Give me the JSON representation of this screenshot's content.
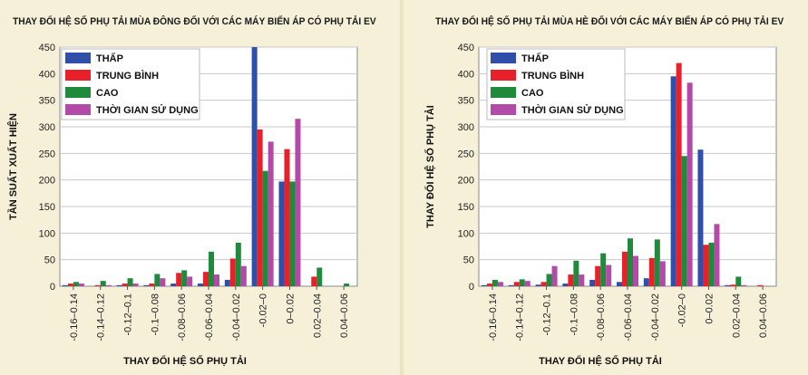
{
  "chart_data": [
    {
      "type": "bar",
      "title": "THAY ĐỔI HỆ SỐ PHỤ TẢI MÙA ĐÔNG ĐỐI VỚI CÁC MÁY BIẾN ÁP CÓ PHỤ TẢI EV",
      "xlabel": "THAY ĐỔI HỆ SỐ PHỤ TẢI",
      "ylabel": "TẦN SUẤT XUẤT HIỆN",
      "ylim": [
        0,
        450
      ],
      "yticks": [
        "0",
        "50",
        "100",
        "150",
        "200",
        "250",
        "300",
        "350",
        "400",
        "450"
      ],
      "categories": [
        "-0.16–0.14",
        "-0.14–0.12",
        "-0.12–0.1",
        "-0.1–0.08",
        "-0.08–0.06",
        "-0.06–0.04",
        "-0.04–0.02",
        "-0.02–0",
        "0–0.02",
        "0.02–0.04",
        "0.04–0.06"
      ],
      "grid": true,
      "legend_position": "top-left",
      "series": [
        {
          "name": "THẤP",
          "color": "#2f4fa8",
          "values": [
            2,
            0,
            2,
            2,
            5,
            5,
            12,
            450,
            197,
            0,
            0
          ]
        },
        {
          "name": "TRUNG BÌNH",
          "color": "#e8202a",
          "values": [
            5,
            2,
            5,
            5,
            25,
            27,
            52,
            295,
            258,
            18,
            0
          ]
        },
        {
          "name": "CAO",
          "color": "#1f8a3c",
          "values": [
            8,
            10,
            15,
            23,
            30,
            65,
            82,
            217,
            197,
            35,
            5
          ]
        },
        {
          "name": "THỜI GIAN SỬ DỤNG",
          "color": "#b44aa8",
          "values": [
            5,
            2,
            5,
            15,
            18,
            22,
            38,
            272,
            315,
            0,
            0
          ]
        }
      ]
    },
    {
      "type": "bar",
      "title": "THAY ĐỔI HỆ SỐ PHỤ TẢI MÙA HÈ ĐỐI VỚI CÁC MÁY BIẾN ÁP CÓ PHỤ TẢI EV",
      "xlabel": "THAY ĐỔI HỆ SỐ PHỤ TẢI",
      "ylabel": "THAY ĐỔI HỆ SỐ PHỤ TẢI",
      "ylim": [
        0,
        450
      ],
      "yticks": [
        "0",
        "50",
        "100",
        "150",
        "200",
        "250",
        "300",
        "350",
        "400",
        "450"
      ],
      "categories": [
        "-0.16–0.14",
        "-0.14–0.12",
        "-0.12–0.1",
        "-0.1–0.08",
        "-0.08–0.06",
        "-0.06–0.04",
        "-0.04–0.02",
        "-0.02–0",
        "0–0.02",
        "0.02–0.04",
        "0.04–0.06"
      ],
      "grid": true,
      "legend_position": "top-left",
      "series": [
        {
          "name": "THẤP",
          "color": "#2f4fa8",
          "values": [
            2,
            2,
            3,
            5,
            12,
            8,
            15,
            395,
            257,
            2,
            0
          ]
        },
        {
          "name": "TRUNG BÌNH",
          "color": "#e8202a",
          "values": [
            5,
            8,
            8,
            22,
            38,
            65,
            53,
            420,
            78,
            3,
            2
          ]
        },
        {
          "name": "CAO",
          "color": "#1f8a3c",
          "values": [
            12,
            13,
            23,
            48,
            62,
            90,
            88,
            245,
            82,
            18,
            0
          ]
        },
        {
          "name": "THỜI GIAN SỬ DỤNG",
          "color": "#b44aa8",
          "values": [
            8,
            10,
            38,
            22,
            40,
            57,
            47,
            383,
            117,
            2,
            0
          ]
        }
      ]
    }
  ]
}
